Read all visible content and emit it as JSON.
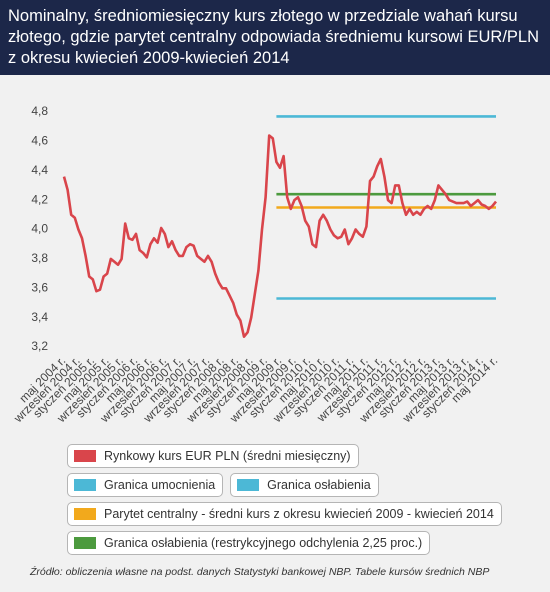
{
  "chart_data": {
    "type": "line",
    "title": "Nominalny, średniomiesięczny kurs złotego w przedziale wahań kursu złotego, gdzie parytet centralny odpowiada średniemu kursowi EUR/PLN z okresu kwiecień 2009-kwiecień 2014",
    "source": "Źródło: obliczenia własne na podst. danych Statystyki bankowej NBP. Tabele kursów średnich NBP",
    "categories": [
      "maj 2004 r.",
      null,
      null,
      null,
      "wrzesień 2004 r.",
      null,
      null,
      null,
      "styczeń 2005 r.",
      null,
      null,
      null,
      "maj 2005 r.",
      null,
      null,
      null,
      "wrzesień 2005 r.",
      null,
      null,
      null,
      "styczeń 2006 r.",
      null,
      null,
      null,
      "maj 2006 r.",
      null,
      null,
      null,
      "wrzesień 2006 r.",
      null,
      null,
      null,
      "styczeń 2007 r.",
      null,
      null,
      null,
      "maj 2007 r.",
      null,
      null,
      null,
      "wrzesień 2007 r.",
      null,
      null,
      null,
      "styczeń 2008 r.",
      null,
      null,
      null,
      "maj 2008 r.",
      null,
      null,
      null,
      "wrzesień 2008 r.",
      null,
      null,
      null,
      "styczeń 2009 r.",
      null,
      null,
      null,
      "maj 2009 r.",
      null,
      null,
      null,
      "wrzesień 2009 r.",
      null,
      null,
      null,
      "styczeń 2010 r.",
      null,
      null,
      null,
      "maj 2010 r.",
      null,
      null,
      null,
      "wrzesień 2010 r.",
      null,
      null,
      null,
      "styczeń 2011 r.",
      null,
      null,
      null,
      "maj 2011 r.",
      null,
      null,
      null,
      "wrzesień 2011 r.",
      null,
      null,
      null,
      "styczeń 2012 r.",
      null,
      null,
      null,
      "maj 2012 r.",
      null,
      null,
      null,
      "wrzesień 2012 r.",
      null,
      null,
      null,
      "styczeń 2013 r.",
      null,
      null,
      null,
      "maj 2013 r.",
      null,
      null,
      null,
      "wrzesień 2013 r.",
      null,
      null,
      null,
      "styczeń 2014 r.",
      null,
      null,
      null,
      "maj 2014 r."
    ],
    "ylim": [
      3.2,
      4.8
    ],
    "yticks": [
      {
        "value": 3.2,
        "label": "3,2"
      },
      {
        "value": 3.4,
        "label": "3,4"
      },
      {
        "value": 3.6,
        "label": "3,6"
      },
      {
        "value": 3.8,
        "label": "3,8"
      },
      {
        "value": 4.0,
        "label": "4,0"
      },
      {
        "value": 4.2,
        "label": "4,2"
      },
      {
        "value": 4.4,
        "label": "4,4"
      },
      {
        "value": 4.6,
        "label": "4,6"
      },
      {
        "value": 4.8,
        "label": "4,8"
      }
    ],
    "series": [
      {
        "name": "Rynkowy kurs EUR PLN (średni miesięczny)",
        "color": "#d9454b",
        "values": [
          4.36,
          4.27,
          4.1,
          4.08,
          4.0,
          3.94,
          3.82,
          3.68,
          3.66,
          3.58,
          3.59,
          3.68,
          3.7,
          3.8,
          3.78,
          3.76,
          3.8,
          4.04,
          3.94,
          3.93,
          3.97,
          3.86,
          3.84,
          3.81,
          3.9,
          3.94,
          3.91,
          4.01,
          3.97,
          3.88,
          3.92,
          3.86,
          3.82,
          3.82,
          3.88,
          3.9,
          3.89,
          3.82,
          3.8,
          3.78,
          3.82,
          3.78,
          3.7,
          3.64,
          3.6,
          3.6,
          3.55,
          3.5,
          3.42,
          3.38,
          3.27,
          3.3,
          3.4,
          3.56,
          3.72,
          4.0,
          4.22,
          4.64,
          4.62,
          4.46,
          4.42,
          4.5,
          4.22,
          4.14,
          4.2,
          4.22,
          4.16,
          4.06,
          4.02,
          3.9,
          3.88,
          4.06,
          4.1,
          4.06,
          4.0,
          3.96,
          3.94,
          3.95,
          4.0,
          3.9,
          3.94,
          4.0,
          3.97,
          3.95,
          4.02,
          4.33,
          4.36,
          4.43,
          4.48,
          4.36,
          4.2,
          4.18,
          4.3,
          4.3,
          4.18,
          4.1,
          4.14,
          4.1,
          4.12,
          4.1,
          4.14,
          4.16,
          4.14,
          4.2,
          4.3,
          4.27,
          4.24,
          4.2,
          4.19,
          4.18,
          4.18,
          4.18,
          4.19,
          4.16,
          4.18,
          4.2,
          4.17,
          4.16,
          4.14,
          4.16,
          4.19
        ]
      },
      {
        "name": "Granica umocnienia",
        "color": "#4cb8d6",
        "values": [
          null,
          null,
          null,
          null,
          null,
          null,
          null,
          null,
          null,
          null,
          null,
          null,
          null,
          null,
          null,
          null,
          null,
          null,
          null,
          null,
          null,
          null,
          null,
          null,
          null,
          null,
          null,
          null,
          null,
          null,
          null,
          null,
          null,
          null,
          null,
          null,
          null,
          null,
          null,
          null,
          null,
          null,
          null,
          null,
          null,
          null,
          null,
          null,
          null,
          null,
          null,
          null,
          null,
          null,
          null,
          null,
          null,
          null,
          null,
          3.53,
          3.53,
          3.53,
          3.53,
          3.53,
          3.53,
          3.53,
          3.53,
          3.53,
          3.53,
          3.53,
          3.53,
          3.53,
          3.53,
          3.53,
          3.53,
          3.53,
          3.53,
          3.53,
          3.53,
          3.53,
          3.53,
          3.53,
          3.53,
          3.53,
          3.53,
          3.53,
          3.53,
          3.53,
          3.53,
          3.53,
          3.53,
          3.53,
          3.53,
          3.53,
          3.53,
          3.53,
          3.53,
          3.53,
          3.53,
          3.53,
          3.53,
          3.53,
          3.53,
          3.53,
          3.53,
          3.53,
          3.53,
          3.53,
          3.53,
          3.53,
          3.53,
          3.53,
          3.53,
          3.53,
          3.53,
          3.53,
          3.53,
          3.53,
          3.53,
          3.53,
          3.53
        ]
      },
      {
        "name": "Granica osłabienia",
        "color": "#4cb8d6",
        "values": [
          null,
          null,
          null,
          null,
          null,
          null,
          null,
          null,
          null,
          null,
          null,
          null,
          null,
          null,
          null,
          null,
          null,
          null,
          null,
          null,
          null,
          null,
          null,
          null,
          null,
          null,
          null,
          null,
          null,
          null,
          null,
          null,
          null,
          null,
          null,
          null,
          null,
          null,
          null,
          null,
          null,
          null,
          null,
          null,
          null,
          null,
          null,
          null,
          null,
          null,
          null,
          null,
          null,
          null,
          null,
          null,
          null,
          null,
          null,
          4.77,
          4.77,
          4.77,
          4.77,
          4.77,
          4.77,
          4.77,
          4.77,
          4.77,
          4.77,
          4.77,
          4.77,
          4.77,
          4.77,
          4.77,
          4.77,
          4.77,
          4.77,
          4.77,
          4.77,
          4.77,
          4.77,
          4.77,
          4.77,
          4.77,
          4.77,
          4.77,
          4.77,
          4.77,
          4.77,
          4.77,
          4.77,
          4.77,
          4.77,
          4.77,
          4.77,
          4.77,
          4.77,
          4.77,
          4.77,
          4.77,
          4.77,
          4.77,
          4.77,
          4.77,
          4.77,
          4.77,
          4.77,
          4.77,
          4.77,
          4.77,
          4.77,
          4.77,
          4.77,
          4.77,
          4.77,
          4.77,
          4.77,
          4.77,
          4.77,
          4.77,
          4.77
        ]
      },
      {
        "name": "Parytet centralny - średni kurs z okresu kwiecień 2009 - kwiecień 2014",
        "color": "#f2a91c",
        "values": [
          null,
          null,
          null,
          null,
          null,
          null,
          null,
          null,
          null,
          null,
          null,
          null,
          null,
          null,
          null,
          null,
          null,
          null,
          null,
          null,
          null,
          null,
          null,
          null,
          null,
          null,
          null,
          null,
          null,
          null,
          null,
          null,
          null,
          null,
          null,
          null,
          null,
          null,
          null,
          null,
          null,
          null,
          null,
          null,
          null,
          null,
          null,
          null,
          null,
          null,
          null,
          null,
          null,
          null,
          null,
          null,
          null,
          null,
          null,
          4.15,
          4.15,
          4.15,
          4.15,
          4.15,
          4.15,
          4.15,
          4.15,
          4.15,
          4.15,
          4.15,
          4.15,
          4.15,
          4.15,
          4.15,
          4.15,
          4.15,
          4.15,
          4.15,
          4.15,
          4.15,
          4.15,
          4.15,
          4.15,
          4.15,
          4.15,
          4.15,
          4.15,
          4.15,
          4.15,
          4.15,
          4.15,
          4.15,
          4.15,
          4.15,
          4.15,
          4.15,
          4.15,
          4.15,
          4.15,
          4.15,
          4.15,
          4.15,
          4.15,
          4.15,
          4.15,
          4.15,
          4.15,
          4.15,
          4.15,
          4.15,
          4.15,
          4.15,
          4.15,
          4.15,
          4.15,
          4.15,
          4.15,
          4.15,
          4.15,
          4.15,
          4.15
        ]
      },
      {
        "name": "Granica osłabienia (restrykcyjnego odchylenia 2,25 proc.)",
        "color": "#4c9a3e",
        "values": [
          null,
          null,
          null,
          null,
          null,
          null,
          null,
          null,
          null,
          null,
          null,
          null,
          null,
          null,
          null,
          null,
          null,
          null,
          null,
          null,
          null,
          null,
          null,
          null,
          null,
          null,
          null,
          null,
          null,
          null,
          null,
          null,
          null,
          null,
          null,
          null,
          null,
          null,
          null,
          null,
          null,
          null,
          null,
          null,
          null,
          null,
          null,
          null,
          null,
          null,
          null,
          null,
          null,
          null,
          null,
          null,
          null,
          null,
          null,
          4.24,
          4.24,
          4.24,
          4.24,
          4.24,
          4.24,
          4.24,
          4.24,
          4.24,
          4.24,
          4.24,
          4.24,
          4.24,
          4.24,
          4.24,
          4.24,
          4.24,
          4.24,
          4.24,
          4.24,
          4.24,
          4.24,
          4.24,
          4.24,
          4.24,
          4.24,
          4.24,
          4.24,
          4.24,
          4.24,
          4.24,
          4.24,
          4.24,
          4.24,
          4.24,
          4.24,
          4.24,
          4.24,
          4.24,
          4.24,
          4.24,
          4.24,
          4.24,
          4.24,
          4.24,
          4.24,
          4.24,
          4.24,
          4.24,
          4.24,
          4.24,
          4.24,
          4.24,
          4.24,
          4.24,
          4.24,
          4.24,
          4.24,
          4.24,
          4.24,
          4.24,
          4.24
        ]
      }
    ]
  }
}
